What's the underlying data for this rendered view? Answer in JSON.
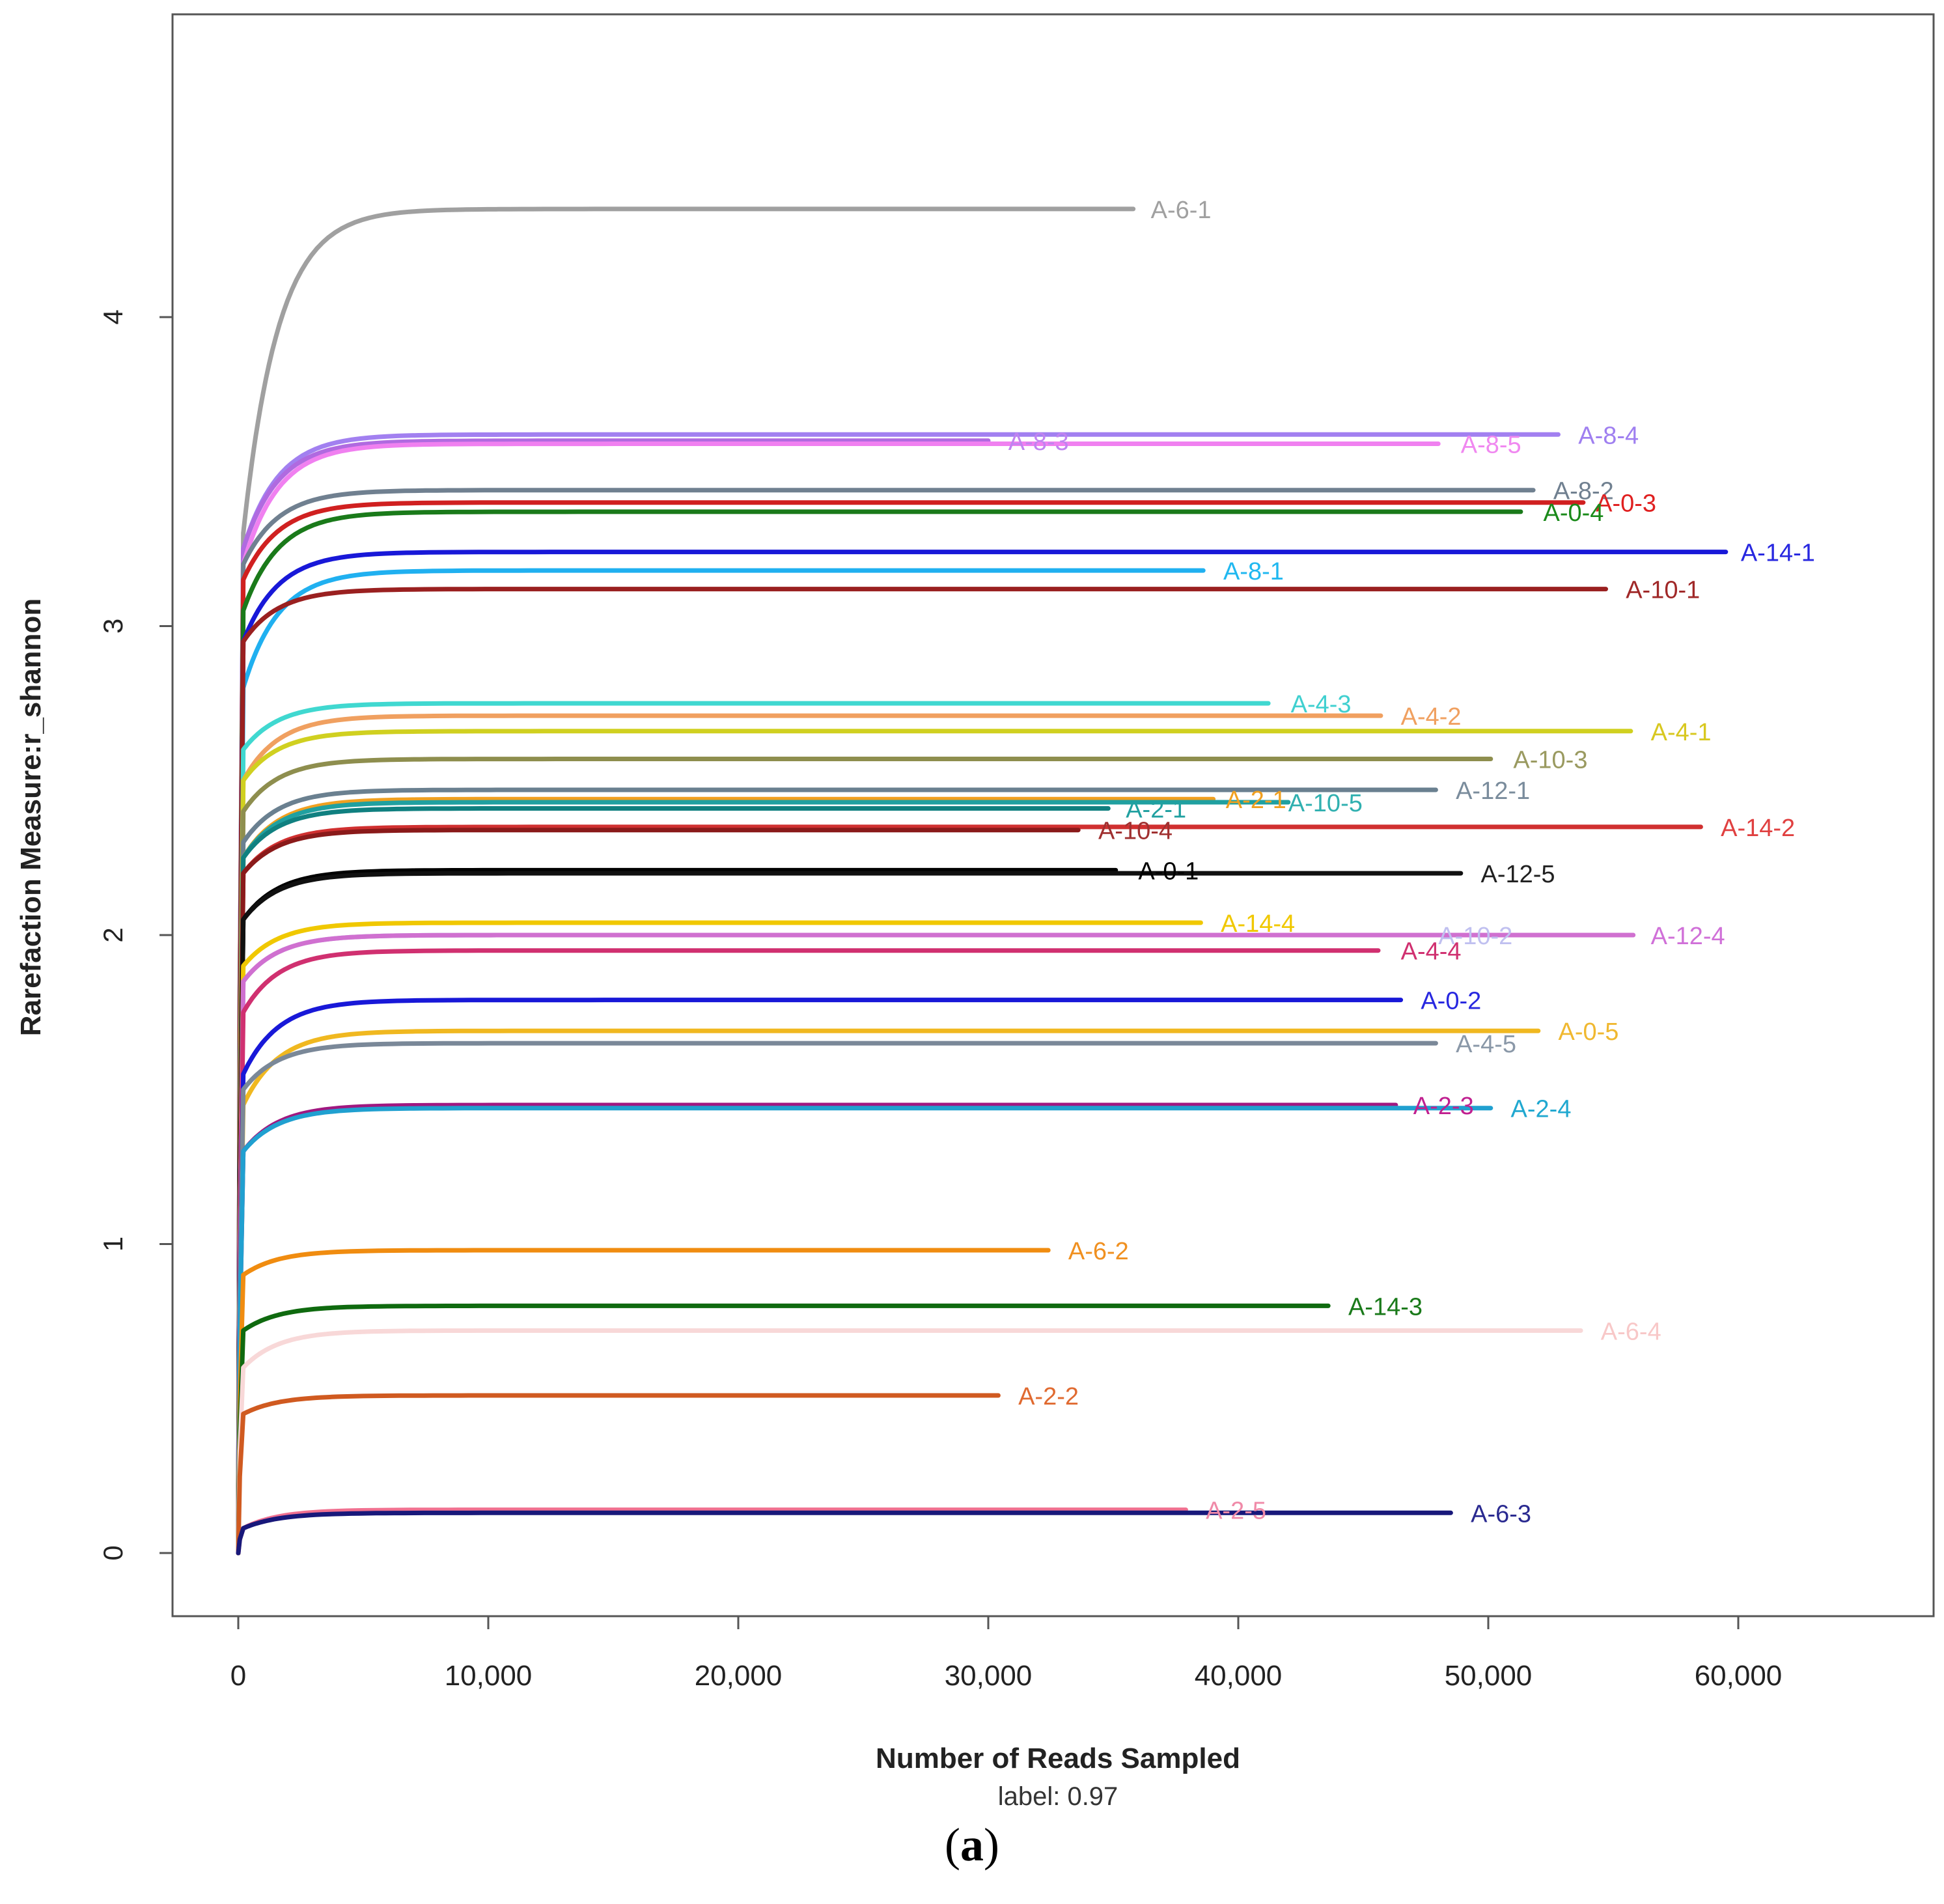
{
  "chart_data": {
    "type": "line",
    "title": "",
    "xlabel": "Number of Reads Sampled",
    "ylabel": "Rarefaction Measure:r_shannon",
    "subtitle": "label: 0.97",
    "caption": {
      "open": "(",
      "letter": "a",
      "close": ")"
    },
    "xlim": [
      0,
      68000
    ],
    "ylim": [
      0,
      4.9
    ],
    "x_ticks": [
      0,
      10000,
      20000,
      30000,
      40000,
      50000,
      60000
    ],
    "x_tick_labels": [
      "0",
      "10,000",
      "20,000",
      "30,000",
      "40,000",
      "50,000",
      "60,000"
    ],
    "y_ticks": [
      0,
      1,
      2,
      3,
      4
    ],
    "y_tick_labels": [
      "0",
      "1",
      "2",
      "3",
      "4"
    ],
    "grid": false,
    "legend": "none",
    "series": [
      {
        "name": "A-6-1",
        "end_x": 35800,
        "plateau": 4.35,
        "start": 3.3,
        "color": "#A0A0A0",
        "label_color": "#A0A0A0",
        "label_x": 36500
      },
      {
        "name": "A-8-4",
        "end_x": 52800,
        "plateau": 3.62,
        "start": 3.25,
        "color": "#A280F0",
        "label_color": "#9F7FF0",
        "label_x": 53600
      },
      {
        "name": "A-8-3",
        "end_x": 30000,
        "plateau": 3.6,
        "start": 3.25,
        "color": "#B06AE0",
        "label_color": "#C083F0",
        "label_x": 30800
      },
      {
        "name": "A-8-5",
        "end_x": 48000,
        "plateau": 3.59,
        "start": 3.2,
        "color": "#F080F0",
        "label_color": "#F088F0",
        "label_x": 48900
      },
      {
        "name": "A-8-2",
        "end_x": 51800,
        "plateau": 3.44,
        "start": 3.2,
        "color": "#708090",
        "label_color": "#708090",
        "label_x": 52600
      },
      {
        "name": "A-0-3",
        "end_x": 53800,
        "plateau": 3.4,
        "start": 3.15,
        "color": "#D02020",
        "label_color": "#E02020",
        "label_x": 54300
      },
      {
        "name": "A-0-4",
        "end_x": 51300,
        "plateau": 3.37,
        "start": 3.05,
        "color": "#1A7A1A",
        "label_color": "#1A8A1A",
        "label_x": 52200
      },
      {
        "name": "A-14-1",
        "end_x": 59500,
        "plateau": 3.24,
        "start": 2.95,
        "color": "#1818D8",
        "label_color": "#2828E0",
        "label_x": 60100
      },
      {
        "name": "A-8-1",
        "end_x": 38600,
        "plateau": 3.18,
        "start": 2.8,
        "color": "#20B0F0",
        "label_color": "#20B8F0",
        "label_x": 39400
      },
      {
        "name": "A-10-1",
        "end_x": 54700,
        "plateau": 3.12,
        "start": 2.95,
        "color": "#9A2020",
        "label_color": "#A02828",
        "label_x": 55500
      },
      {
        "name": "A-4-3",
        "end_x": 41200,
        "plateau": 2.75,
        "start": 2.6,
        "color": "#40D8D0",
        "label_color": "#40D0D0",
        "label_x": 42100
      },
      {
        "name": "A-4-2",
        "end_x": 45700,
        "plateau": 2.71,
        "start": 2.5,
        "color": "#F0A060",
        "label_color": "#F0A060",
        "label_x": 46500
      },
      {
        "name": "A-4-1",
        "end_x": 55700,
        "plateau": 2.66,
        "start": 2.5,
        "color": "#D0D020",
        "label_color": "#D8C820",
        "label_x": 56500
      },
      {
        "name": "A-10-3",
        "end_x": 50100,
        "plateau": 2.57,
        "start": 2.4,
        "color": "#8E8E4E",
        "label_color": "#9A9A60",
        "label_x": 51000
      },
      {
        "name": "A-12-1",
        "end_x": 47900,
        "plateau": 2.47,
        "start": 2.3,
        "color": "#6A8090",
        "label_color": "#7A8C9C",
        "label_x": 48700
      },
      {
        "name": "A-2-1",
        "end_x": 39000,
        "plateau": 2.44,
        "start": 2.25,
        "color": "#F0A020",
        "label_color": "#F0A020",
        "label_x": 39500
      },
      {
        "name": "A-10-5",
        "end_x": 42000,
        "plateau": 2.43,
        "start": 2.25,
        "color": "#20A0A0",
        "label_color": "#30B0B0",
        "label_x": 42000
      },
      {
        "name": "A-2-1b",
        "display": "A-2-1",
        "end_x": 34800,
        "plateau": 2.41,
        "start": 2.25,
        "color": "#108080",
        "label_color": "#20A0A0",
        "label_x": 35500
      },
      {
        "name": "A-14-2",
        "end_x": 58500,
        "plateau": 2.35,
        "start": 2.2,
        "color": "#D03030",
        "label_color": "#E04040",
        "label_x": 59300
      },
      {
        "name": "A-10-4",
        "end_x": 33600,
        "plateau": 2.34,
        "start": 2.2,
        "color": "#8A1A1A",
        "label_color": "#A03030",
        "label_x": 34400
      },
      {
        "name": "A-0-1",
        "end_x": 35100,
        "plateau": 2.21,
        "start": 2.05,
        "color": "#000000",
        "label_color": "#000000",
        "label_x": 36000
      },
      {
        "name": "A-12-5",
        "end_x": 48900,
        "plateau": 2.2,
        "start": 2.05,
        "color": "#101010",
        "label_color": "#202020",
        "label_x": 49700
      },
      {
        "name": "A-14-4",
        "end_x": 38500,
        "plateau": 2.04,
        "start": 1.9,
        "color": "#F0C800",
        "label_color": "#F0C800",
        "label_x": 39300
      },
      {
        "name": "A-10-2",
        "end_x": 48000,
        "plateau": 2.0,
        "start": 1.85,
        "color": "#B0B0E0",
        "label_color": "#C0C0F0",
        "label_x": 48000
      },
      {
        "name": "A-12-4",
        "end_x": 55800,
        "plateau": 2.0,
        "start": 1.85,
        "color": "#D070D0",
        "label_color": "#D070D8",
        "label_x": 56500
      },
      {
        "name": "A-4-4",
        "end_x": 45600,
        "plateau": 1.95,
        "start": 1.75,
        "color": "#D03070",
        "label_color": "#D03070",
        "label_x": 46500
      },
      {
        "name": "A-0-2",
        "end_x": 46500,
        "plateau": 1.79,
        "start": 1.55,
        "color": "#1818D8",
        "label_color": "#2828E0",
        "label_x": 47300
      },
      {
        "name": "A-0-5",
        "end_x": 52000,
        "plateau": 1.69,
        "start": 1.45,
        "color": "#F0B820",
        "label_color": "#F0B830",
        "label_x": 52800
      },
      {
        "name": "A-4-5",
        "end_x": 47900,
        "plateau": 1.65,
        "start": 1.5,
        "color": "#7A8898",
        "label_color": "#8A98A8",
        "label_x": 48700
      },
      {
        "name": "A-2-3",
        "end_x": 46300,
        "plateau": 1.45,
        "start": 1.3,
        "color": "#A01880",
        "label_color": "#C02090",
        "label_x": 47000
      },
      {
        "name": "A-2-4",
        "end_x": 50100,
        "plateau": 1.44,
        "start": 1.3,
        "color": "#20A0D0",
        "label_color": "#20A8D0",
        "label_x": 50900
      },
      {
        "name": "A-6-2",
        "end_x": 32400,
        "plateau": 0.98,
        "start": 0.9,
        "color": "#F08C10",
        "label_color": "#F09020",
        "label_x": 33200
      },
      {
        "name": "A-14-3",
        "end_x": 43600,
        "plateau": 0.8,
        "start": 0.72,
        "color": "#0F6A0F",
        "label_color": "#1A7A1A",
        "label_x": 44400
      },
      {
        "name": "A-6-4",
        "end_x": 53700,
        "plateau": 0.72,
        "start": 0.6,
        "color": "#F8D8D8",
        "label_color": "#F8C8C8",
        "label_x": 54500
      },
      {
        "name": "A-2-2",
        "end_x": 30400,
        "plateau": 0.51,
        "start": 0.45,
        "color": "#D05A20",
        "label_color": "#E06A30",
        "label_x": 31200
      },
      {
        "name": "A-2-5",
        "end_x": 37900,
        "plateau": 0.14,
        "start": 0.08,
        "color": "#F07090",
        "label_color": "#F08AA8",
        "label_x": 38700
      },
      {
        "name": "A-6-3",
        "end_x": 48500,
        "plateau": 0.13,
        "start": 0.08,
        "color": "#18187A",
        "label_color": "#2A2A90",
        "label_x": 49300
      }
    ]
  }
}
